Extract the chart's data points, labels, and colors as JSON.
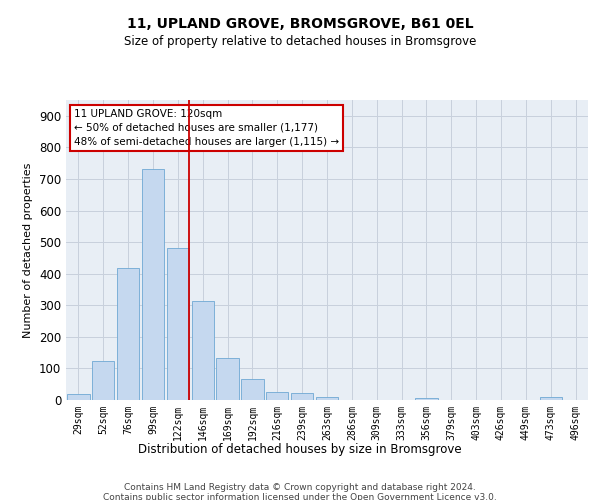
{
  "title": "11, UPLAND GROVE, BROMSGROVE, B61 0EL",
  "subtitle": "Size of property relative to detached houses in Bromsgrove",
  "xlabel": "Distribution of detached houses by size in Bromsgrove",
  "ylabel": "Number of detached properties",
  "categories": [
    "29sqm",
    "52sqm",
    "76sqm",
    "99sqm",
    "122sqm",
    "146sqm",
    "169sqm",
    "192sqm",
    "216sqm",
    "239sqm",
    "263sqm",
    "286sqm",
    "309sqm",
    "333sqm",
    "356sqm",
    "379sqm",
    "403sqm",
    "426sqm",
    "449sqm",
    "473sqm",
    "496sqm"
  ],
  "values": [
    20,
    122,
    418,
    730,
    480,
    315,
    133,
    67,
    25,
    22,
    10,
    0,
    0,
    0,
    7,
    0,
    0,
    0,
    0,
    10,
    0
  ],
  "bar_color": "#c5d8ef",
  "bar_edge_color": "#6fa8d4",
  "vline_index": 4,
  "vline_color": "#cc0000",
  "annotation_line1": "11 UPLAND GROVE: 120sqm",
  "annotation_line2": "← 50% of detached houses are smaller (1,177)",
  "annotation_line3": "48% of semi-detached houses are larger (1,115) →",
  "annotation_box_color": "#cc0000",
  "ylim": [
    0,
    950
  ],
  "yticks": [
    0,
    100,
    200,
    300,
    400,
    500,
    600,
    700,
    800,
    900
  ],
  "grid_color": "#c8d0dc",
  "bg_color": "#e8eef5",
  "footer1": "Contains HM Land Registry data © Crown copyright and database right 2024.",
  "footer2": "Contains public sector information licensed under the Open Government Licence v3.0."
}
